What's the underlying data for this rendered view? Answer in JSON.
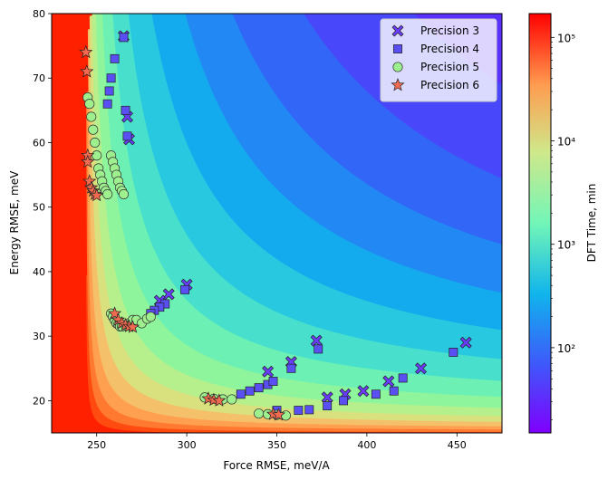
{
  "chart_data": {
    "type": "scatter",
    "title": "",
    "xlabel": "Force RMSE, meV/A",
    "ylabel": "Energy RMSE, meV",
    "xlim": [
      225,
      475
    ],
    "ylim": [
      15,
      80
    ],
    "xticks": [
      250,
      300,
      350,
      400,
      450
    ],
    "yticks": [
      20,
      30,
      40,
      50,
      60,
      70,
      80
    ],
    "background": "filled contour of DFT time over the force/energy RMSE plane (log-scaled rainbow)",
    "colorbar": {
      "label": "DFT Time, min",
      "scale": "log",
      "range": [
        15,
        170000
      ],
      "ticks": [
        {
          "value": 100,
          "label": "10²"
        },
        {
          "value": 1000,
          "label": "10³"
        },
        {
          "value": 10000,
          "label": "10⁴"
        },
        {
          "value": 100000,
          "label": "10⁵"
        }
      ]
    },
    "legend_position": "top-right",
    "series": [
      {
        "name": "Precision 3",
        "marker": "x",
        "color": "#6a3dff",
        "x": [
          265,
          267,
          268,
          300,
          290,
          285,
          345,
          358,
          372,
          378,
          388,
          398,
          412,
          430,
          455
        ],
        "y": [
          76.5,
          64,
          60.5,
          38,
          36.5,
          35.5,
          24.5,
          26,
          29.3,
          20.5,
          21,
          21.5,
          23,
          25,
          29
        ]
      },
      {
        "name": "Precision 4",
        "marker": "square",
        "color": "#5a4ff2",
        "x": [
          265,
          266,
          267,
          260,
          258,
          257,
          256,
          299,
          288,
          285,
          282,
          280,
          330,
          335,
          340,
          345,
          348,
          358,
          373,
          387,
          405,
          415,
          420,
          448,
          350,
          362,
          368,
          378
        ],
        "y": [
          76.3,
          65,
          61,
          73,
          70,
          68,
          66,
          37.2,
          35,
          34.5,
          34,
          33.5,
          21,
          21.5,
          22,
          22.5,
          23,
          25,
          28,
          20,
          21,
          21.5,
          23.5,
          27.5,
          18.5,
          18.5,
          18.6,
          19.2
        ]
      },
      {
        "name": "Precision 5",
        "marker": "circle",
        "color": "#9ef08e",
        "x": [
          245,
          246,
          247,
          248,
          249,
          250,
          251,
          252,
          253,
          254,
          255,
          256,
          258,
          259,
          260,
          261,
          262,
          263,
          264,
          265,
          258,
          259,
          260,
          261,
          262,
          263,
          264,
          266,
          268,
          270,
          272,
          275,
          278,
          280,
          310,
          315,
          320,
          325,
          340,
          345,
          350,
          355
        ],
        "y": [
          67,
          66,
          64,
          62,
          60,
          58,
          56,
          55,
          54,
          53,
          52.5,
          52,
          58,
          57,
          56,
          55,
          54,
          53,
          52.5,
          52,
          33.5,
          33,
          32.5,
          32,
          31.8,
          31.5,
          31.5,
          31.7,
          32,
          32.5,
          32.5,
          32,
          32.7,
          33,
          20.5,
          20.3,
          20.2,
          20.2,
          18,
          17.9,
          17.8,
          17.7
        ]
      },
      {
        "name": "Precision 6",
        "marker": "star",
        "color": "#f26a4f",
        "x": [
          244,
          244.5,
          245,
          245,
          246,
          247,
          248,
          249,
          250,
          260,
          262,
          264,
          266,
          268,
          270,
          312,
          315,
          318,
          348,
          351
        ],
        "y": [
          74,
          71,
          58,
          57,
          54,
          53,
          52.5,
          52,
          51.8,
          33.5,
          32.5,
          32,
          31.7,
          31.5,
          31.4,
          20.3,
          20.1,
          20,
          17.9,
          17.8
        ]
      }
    ]
  }
}
